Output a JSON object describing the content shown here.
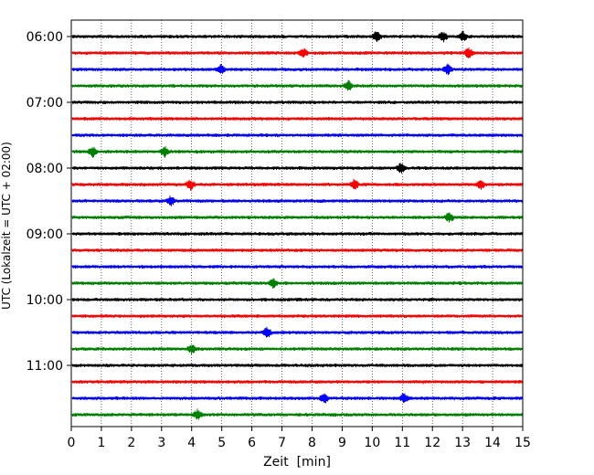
{
  "chart_data": {
    "type": "line",
    "title": "",
    "xlabel": "Zeit  [min]",
    "ylabel": "UTC (Lokalzeit = UTC + 02:00)",
    "xlim": [
      0,
      15
    ],
    "x_ticks": [
      "0",
      "1",
      "2",
      "3",
      "4",
      "5",
      "6",
      "7",
      "8",
      "9",
      "10",
      "11",
      "12",
      "13",
      "14",
      "15"
    ],
    "y_ticks": [
      "06:00",
      "07:00",
      "08:00",
      "09:00",
      "10:00",
      "11:00"
    ],
    "grid": "vertical dotted lines at each minute",
    "trace_interval_minutes": 15,
    "color_cycle": [
      "#000000",
      "#ff0000",
      "#0000ff",
      "#008000"
    ],
    "traces": [
      {
        "start": "06:00",
        "color": "#000000"
      },
      {
        "start": "06:15",
        "color": "#ff0000"
      },
      {
        "start": "06:30",
        "color": "#0000ff"
      },
      {
        "start": "06:45",
        "color": "#008000"
      },
      {
        "start": "07:00",
        "color": "#000000"
      },
      {
        "start": "07:15",
        "color": "#ff0000"
      },
      {
        "start": "07:30",
        "color": "#0000ff"
      },
      {
        "start": "07:45",
        "color": "#008000"
      },
      {
        "start": "08:00",
        "color": "#000000"
      },
      {
        "start": "08:15",
        "color": "#ff0000"
      },
      {
        "start": "08:30",
        "color": "#0000ff"
      },
      {
        "start": "08:45",
        "color": "#008000"
      },
      {
        "start": "09:00",
        "color": "#000000"
      },
      {
        "start": "09:15",
        "color": "#ff0000"
      },
      {
        "start": "09:30",
        "color": "#0000ff"
      },
      {
        "start": "09:45",
        "color": "#008000"
      },
      {
        "start": "10:00",
        "color": "#000000"
      },
      {
        "start": "10:15",
        "color": "#ff0000"
      },
      {
        "start": "10:30",
        "color": "#0000ff"
      },
      {
        "start": "10:45",
        "color": "#008000"
      },
      {
        "start": "11:00",
        "color": "#000000"
      },
      {
        "start": "11:15",
        "color": "#ff0000"
      },
      {
        "start": "11:30",
        "color": "#0000ff"
      },
      {
        "start": "11:45",
        "color": "#008000"
      }
    ],
    "events": [
      {
        "trace": 0,
        "minute": 10.15
      },
      {
        "trace": 0,
        "minute": 12.35
      },
      {
        "trace": 0,
        "minute": 13.0
      },
      {
        "trace": 1,
        "minute": 7.7
      },
      {
        "trace": 1,
        "minute": 13.2
      },
      {
        "trace": 2,
        "minute": 4.95
      },
      {
        "trace": 2,
        "minute": 12.5
      },
      {
        "trace": 3,
        "minute": 9.2
      },
      {
        "trace": 7,
        "minute": 0.7
      },
      {
        "trace": 7,
        "minute": 3.1
      },
      {
        "trace": 8,
        "minute": 10.95
      },
      {
        "trace": 9,
        "minute": 3.95
      },
      {
        "trace": 9,
        "minute": 9.4
      },
      {
        "trace": 9,
        "minute": 13.6
      },
      {
        "trace": 10,
        "minute": 3.3
      },
      {
        "trace": 11,
        "minute": 12.55
      },
      {
        "trace": 15,
        "minute": 6.7
      },
      {
        "trace": 18,
        "minute": 6.5
      },
      {
        "trace": 19,
        "minute": 4.0
      },
      {
        "trace": 22,
        "minute": 8.4
      },
      {
        "trace": 22,
        "minute": 11.05
      },
      {
        "trace": 23,
        "minute": 4.2
      }
    ]
  }
}
